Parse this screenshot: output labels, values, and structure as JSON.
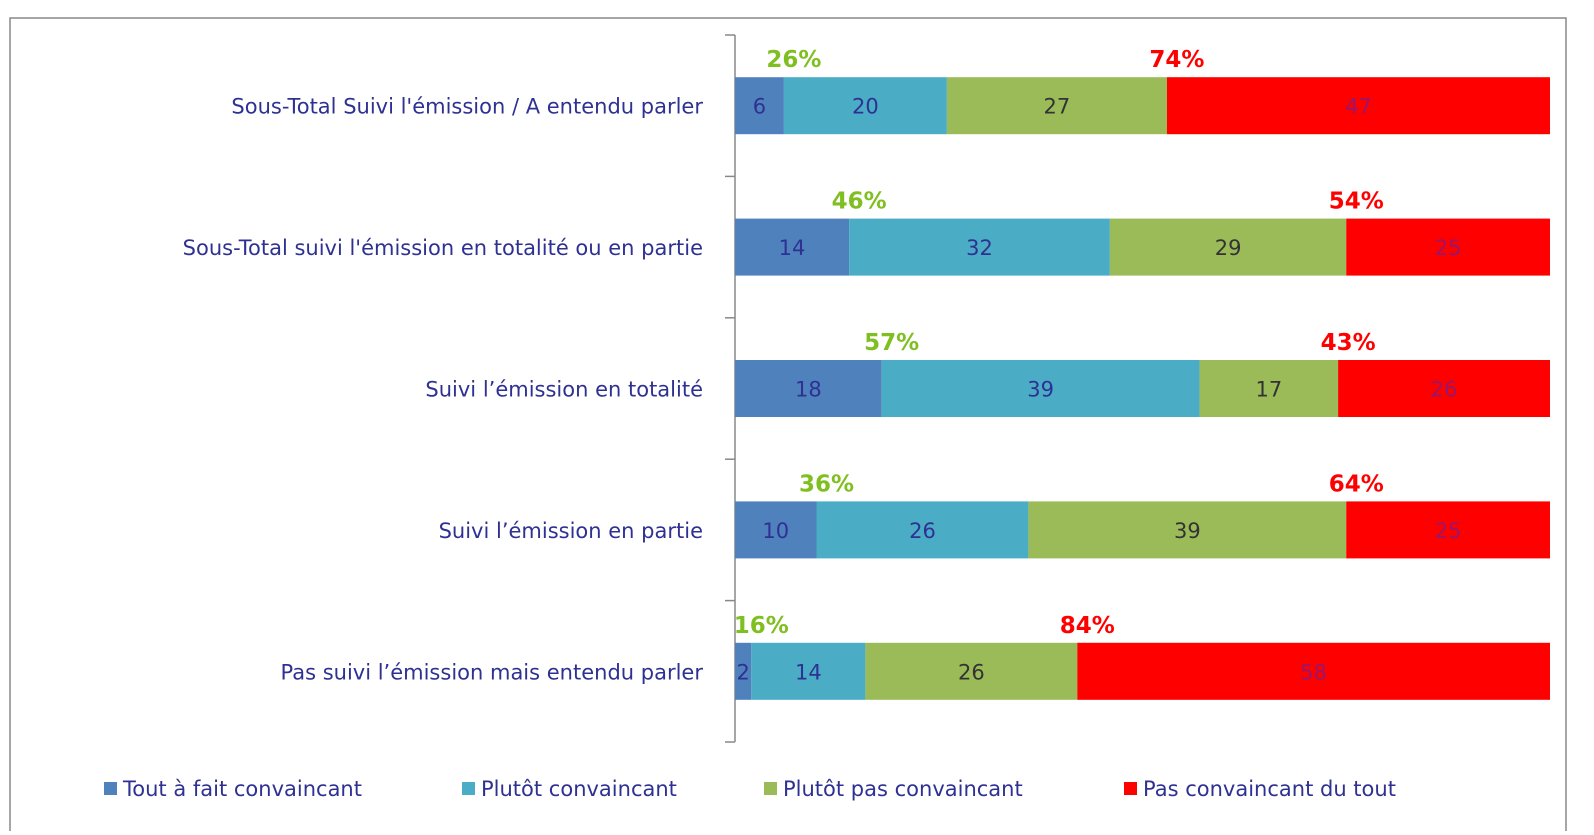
{
  "chart_data": {
    "type": "stacked-barh",
    "categories": [
      "Sous-Total Suivi l'émission / A entendu parler",
      "Sous-Total suivi l'émission en totalité ou en partie",
      "Suivi l’émission en totalité",
      "Suivi l’émission en partie",
      "Pas suivi l’émission mais entendu parler"
    ],
    "series": [
      {
        "name": "Tout à fait convaincant",
        "color": "#4f81bd",
        "values": [
          6,
          14,
          18,
          10,
          2
        ]
      },
      {
        "name": "Plutôt convaincant",
        "color": "#4bacc6",
        "values": [
          20,
          32,
          39,
          26,
          14
        ]
      },
      {
        "name": "Plutôt pas convaincant",
        "color": "#9bbb59",
        "values": [
          27,
          29,
          17,
          39,
          26
        ]
      },
      {
        "name": "Pas convaincant du tout",
        "color": "#ff0000",
        "values": [
          47,
          25,
          26,
          25,
          58
        ]
      }
    ],
    "totals": [
      {
        "color": "#7fbf1f",
        "values": [
          26,
          46,
          57,
          36,
          16
        ],
        "value_labels": [
          "26%",
          "46%",
          "57%",
          "36%",
          "16%"
        ]
      },
      {
        "color": "#ff0000",
        "values": [
          74,
          54,
          43,
          64,
          84
        ],
        "value_labels": [
          "74%",
          "54%",
          "43%",
          "64%",
          "84%"
        ]
      }
    ],
    "xlim": [
      0,
      100
    ],
    "legend": "bottom"
  }
}
